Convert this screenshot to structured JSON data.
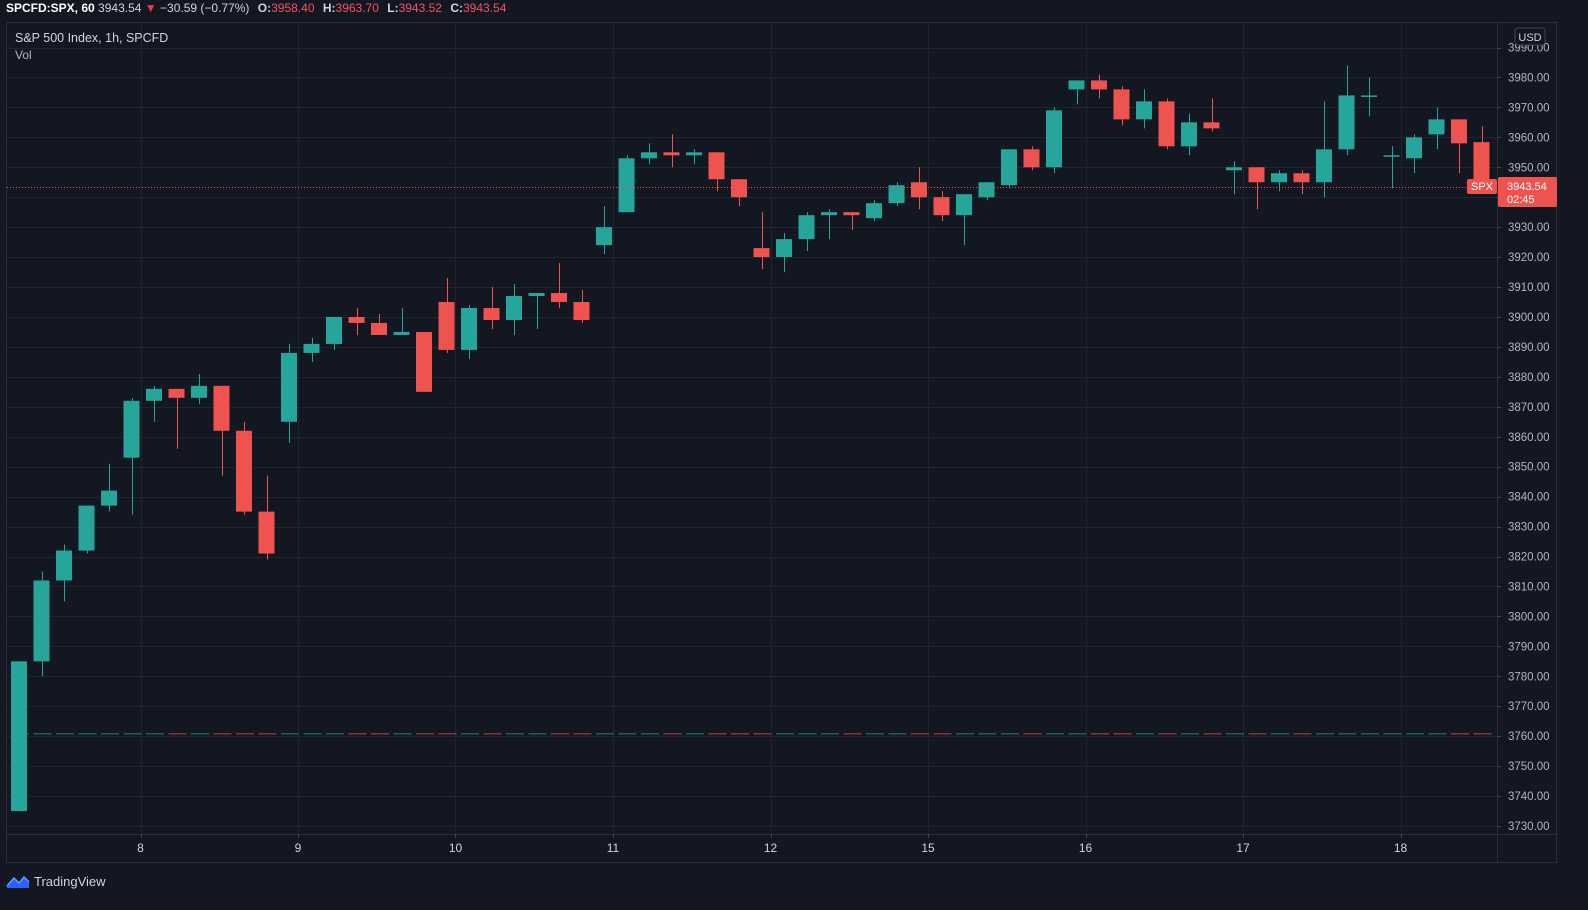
{
  "header": {
    "symbol": "SPCFD:SPX, 60",
    "last": "3943.54",
    "arrow": "▼",
    "change": "−30.59 (−0.77%)",
    "open_label": "O:",
    "open": "3958.40",
    "high_label": "H:",
    "high": "3963.70",
    "low_label": "L:",
    "low": "3943.52",
    "close_label": "C:",
    "close": "3943.54"
  },
  "legend": {
    "title": "S&P 500 Index, 1h, SPCFD",
    "volume": "Vol"
  },
  "currency_button": "USD",
  "price_tag": {
    "symbol": "SPX",
    "price": "3943.54",
    "countdown": "02:45"
  },
  "footer": {
    "brand": "TradingView",
    "logo_icon": "tradingview-logo-icon"
  },
  "colors": {
    "background": "#131722",
    "grid": "#1f2431",
    "up": "#26a69a",
    "down": "#ef5350",
    "text": "#d1d4dc",
    "axis_text": "#b2b5be"
  },
  "chart_data": {
    "type": "candlestick",
    "title": "S&P 500 Index, 1h, SPCFD",
    "ylabel": "USD",
    "ylim": [
      3725,
      3993
    ],
    "y_ticks": [
      3730,
      3740,
      3750,
      3760,
      3770,
      3780,
      3790,
      3800,
      3810,
      3820,
      3830,
      3840,
      3850,
      3860,
      3870,
      3880,
      3890,
      3900,
      3910,
      3920,
      3930,
      3940,
      3950,
      3960,
      3970,
      3980,
      3990
    ],
    "x_ticks": [
      {
        "label": "8",
        "index": 5.4
      },
      {
        "label": "9",
        "index": 12.4
      },
      {
        "label": "10",
        "index": 19.4
      },
      {
        "label": "11",
        "index": 26.4
      },
      {
        "label": "12",
        "index": 33.4
      },
      {
        "label": "15",
        "index": 40.4
      },
      {
        "label": "16",
        "index": 47.4
      },
      {
        "label": "17",
        "index": 54.4
      },
      {
        "label": "18",
        "index": 61.4
      }
    ],
    "current_price": 3943.54,
    "candles": [
      {
        "o": 3735,
        "h": 3785,
        "l": 3735,
        "c": 3785
      },
      {
        "o": 3785,
        "h": 3815,
        "l": 3780,
        "c": 3812
      },
      {
        "o": 3812,
        "h": 3824,
        "l": 3805,
        "c": 3822
      },
      {
        "o": 3822,
        "h": 3837,
        "l": 3821,
        "c": 3837
      },
      {
        "o": 3837,
        "h": 3851,
        "l": 3835,
        "c": 3842
      },
      {
        "o": 3853,
        "h": 3873,
        "l": 3834,
        "c": 3872
      },
      {
        "o": 3872,
        "h": 3877,
        "l": 3865,
        "c": 3876
      },
      {
        "o": 3876,
        "h": 3876,
        "l": 3856,
        "c": 3873
      },
      {
        "o": 3873,
        "h": 3881,
        "l": 3871,
        "c": 3877
      },
      {
        "o": 3877,
        "h": 3877,
        "l": 3847,
        "c": 3862
      },
      {
        "o": 3862,
        "h": 3865,
        "l": 3834,
        "c": 3835
      },
      {
        "o": 3835,
        "h": 3847,
        "l": 3819,
        "c": 3821
      },
      {
        "o": 3865,
        "h": 3891,
        "l": 3858,
        "c": 3888
      },
      {
        "o": 3888,
        "h": 3893,
        "l": 3885,
        "c": 3891
      },
      {
        "o": 3891,
        "h": 3900,
        "l": 3889,
        "c": 3900
      },
      {
        "o": 3900,
        "h": 3903,
        "l": 3894,
        "c": 3898
      },
      {
        "o": 3898,
        "h": 3901,
        "l": 3894,
        "c": 3894
      },
      {
        "o": 3894,
        "h": 3903,
        "l": 3894,
        "c": 3895
      },
      {
        "o": 3895,
        "h": 3895,
        "l": 3875,
        "c": 3875
      },
      {
        "o": 3905,
        "h": 3913,
        "l": 3888,
        "c": 3889
      },
      {
        "o": 3889,
        "h": 3904,
        "l": 3886,
        "c": 3903
      },
      {
        "o": 3903,
        "h": 3910,
        "l": 3896,
        "c": 3899
      },
      {
        "o": 3899,
        "h": 3911,
        "l": 3894,
        "c": 3907
      },
      {
        "o": 3907,
        "h": 3908,
        "l": 3896,
        "c": 3908
      },
      {
        "o": 3908,
        "h": 3918,
        "l": 3903,
        "c": 3905
      },
      {
        "o": 3905,
        "h": 3909,
        "l": 3898,
        "c": 3899
      },
      {
        "o": 3924,
        "h": 3937,
        "l": 3921,
        "c": 3930
      },
      {
        "o": 3935,
        "h": 3954,
        "l": 3935,
        "c": 3953
      },
      {
        "o": 3953,
        "h": 3958,
        "l": 3951,
        "c": 3955
      },
      {
        "o": 3955,
        "h": 3961,
        "l": 3950,
        "c": 3954
      },
      {
        "o": 3954,
        "h": 3956,
        "l": 3951,
        "c": 3955
      },
      {
        "o": 3955,
        "h": 3955,
        "l": 3942,
        "c": 3946
      },
      {
        "o": 3946,
        "h": 3946,
        "l": 3937,
        "c": 3940
      },
      {
        "o": 3923,
        "h": 3935,
        "l": 3916,
        "c": 3920
      },
      {
        "o": 3920,
        "h": 3928,
        "l": 3915,
        "c": 3926
      },
      {
        "o": 3926,
        "h": 3935,
        "l": 3922,
        "c": 3934
      },
      {
        "o": 3934,
        "h": 3936,
        "l": 3926,
        "c": 3935
      },
      {
        "o": 3935,
        "h": 3935,
        "l": 3929,
        "c": 3934
      },
      {
        "o": 3933,
        "h": 3939,
        "l": 3932,
        "c": 3938
      },
      {
        "o": 3938,
        "h": 3945,
        "l": 3937,
        "c": 3944
      },
      {
        "o": 3945,
        "h": 3950,
        "l": 3936,
        "c": 3940
      },
      {
        "o": 3940,
        "h": 3942,
        "l": 3932,
        "c": 3934
      },
      {
        "o": 3934,
        "h": 3941,
        "l": 3924,
        "c": 3941
      },
      {
        "o": 3940,
        "h": 3945,
        "l": 3939,
        "c": 3945
      },
      {
        "o": 3944,
        "h": 3956,
        "l": 3943,
        "c": 3956
      },
      {
        "o": 3956,
        "h": 3957,
        "l": 3949,
        "c": 3950
      },
      {
        "o": 3950,
        "h": 3970,
        "l": 3948,
        "c": 3969
      },
      {
        "o": 3976,
        "h": 3979,
        "l": 3971,
        "c": 3979
      },
      {
        "o": 3979,
        "h": 3981,
        "l": 3973,
        "c": 3976
      },
      {
        "o": 3976,
        "h": 3977,
        "l": 3964,
        "c": 3966
      },
      {
        "o": 3966,
        "h": 3976,
        "l": 3963,
        "c": 3972
      },
      {
        "o": 3972,
        "h": 3973,
        "l": 3956,
        "c": 3957
      },
      {
        "o": 3957,
        "h": 3968,
        "l": 3954,
        "c": 3965
      },
      {
        "o": 3965,
        "h": 3973,
        "l": 3962,
        "c": 3963
      },
      {
        "o": 3949,
        "h": 3952,
        "l": 3941,
        "c": 3950
      },
      {
        "o": 3950,
        "h": 3950,
        "l": 3936,
        "c": 3945
      },
      {
        "o": 3945,
        "h": 3949,
        "l": 3942,
        "c": 3948
      },
      {
        "o": 3948,
        "h": 3949,
        "l": 3941,
        "c": 3945
      },
      {
        "o": 3945,
        "h": 3972,
        "l": 3940,
        "c": 3956
      },
      {
        "o": 3956,
        "h": 3984,
        "l": 3954,
        "c": 3974
      },
      {
        "o": 3974,
        "h": 3980,
        "l": 3967,
        "c": 3974
      },
      {
        "o": 3954,
        "h": 3957,
        "l": 3943,
        "c": 3954
      },
      {
        "o": 3953,
        "h": 3961,
        "l": 3948,
        "c": 3960
      },
      {
        "o": 3961,
        "h": 3970,
        "l": 3956,
        "c": 3966
      },
      {
        "o": 3966,
        "h": 3966,
        "l": 3948,
        "c": 3958
      },
      {
        "o": 3958.4,
        "h": 3963.7,
        "l": 3943.52,
        "c": 3943.54
      }
    ]
  }
}
